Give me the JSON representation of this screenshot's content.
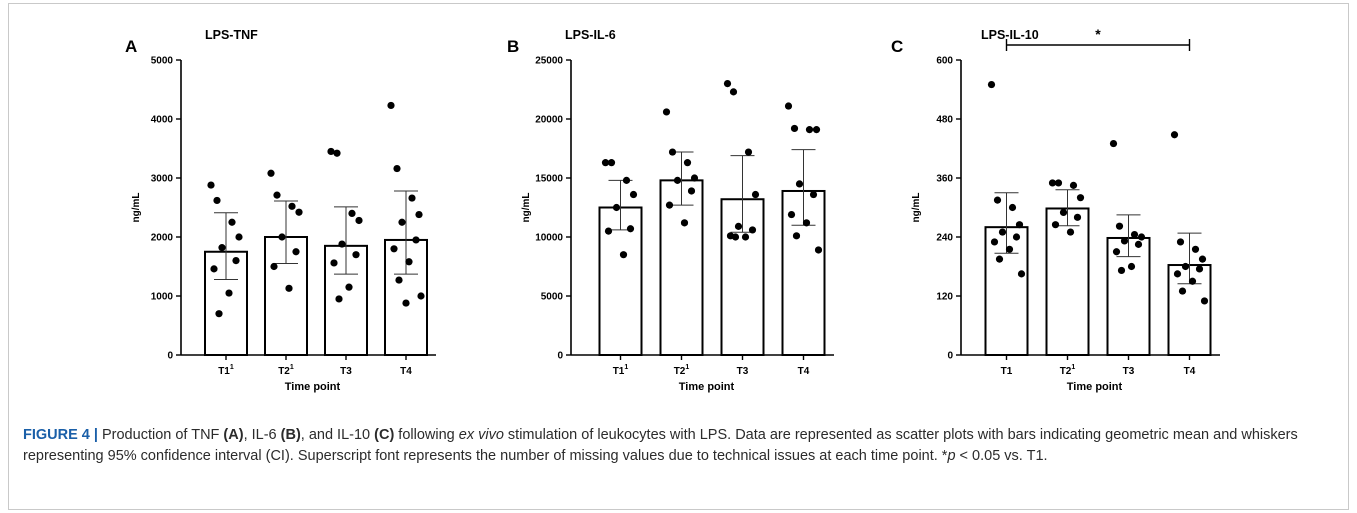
{
  "chart_data": [
    {
      "type": "bar",
      "panel": "A",
      "title": "LPS-TNF",
      "xlabel": "Time point",
      "ylabel": "ng/mL",
      "categories": [
        "T1",
        "T2",
        "T3",
        "T4"
      ],
      "category_superscripts": [
        "1",
        "1",
        "",
        ""
      ],
      "ylim": [
        0,
        5000
      ],
      "yticks": [
        "0",
        "1000",
        "2000",
        "3000",
        "4000",
        "5000"
      ],
      "bar_values": [
        1750,
        2000,
        1850,
        1950
      ],
      "ci_lower": [
        1280,
        1550,
        1370,
        1370
      ],
      "ci_upper": [
        2410,
        2610,
        2510,
        2780
      ],
      "points": [
        [
          2880,
          2620,
          2250,
          2000,
          1820,
          1600,
          1460,
          1050,
          700
        ],
        [
          3080,
          2710,
          2520,
          2420,
          2000,
          1750,
          1500,
          1130
        ],
        [
          3450,
          3420,
          2400,
          2280,
          1880,
          1700,
          1560,
          1150,
          950
        ],
        [
          4230,
          3160,
          2660,
          2380,
          2250,
          1950,
          1800,
          1580,
          1270,
          1000,
          880
        ]
      ],
      "significance": null
    },
    {
      "type": "bar",
      "panel": "B",
      "title": "LPS-IL-6",
      "xlabel": "Time point",
      "ylabel": "ng/mL",
      "categories": [
        "T1",
        "T2",
        "T3",
        "T4"
      ],
      "category_superscripts": [
        "1",
        "1",
        "",
        ""
      ],
      "ylim": [
        0,
        25000
      ],
      "yticks": [
        "0",
        "5000",
        "10000",
        "15000",
        "20000",
        "25000"
      ],
      "bar_values": [
        12500,
        14800,
        13200,
        13900
      ],
      "ci_lower": [
        10600,
        12700,
        10400,
        11000
      ],
      "ci_upper": [
        14800,
        17200,
        16900,
        17400
      ],
      "points": [
        [
          16300,
          16300,
          14800,
          13600,
          12500,
          10700,
          10500,
          8500
        ],
        [
          20600,
          17200,
          16300,
          15000,
          14800,
          13900,
          12700,
          11200
        ],
        [
          23000,
          22300,
          17200,
          13600,
          10900,
          10600,
          10100,
          10000,
          10000
        ],
        [
          21100,
          19200,
          19100,
          19100,
          14500,
          13600,
          11900,
          11200,
          10100,
          8900
        ]
      ],
      "significance": null
    },
    {
      "type": "bar",
      "panel": "C",
      "title": "LPS-IL-10",
      "xlabel": "Time point",
      "ylabel": "ng/mL",
      "categories": [
        "T1",
        "T2",
        "T3",
        "T4"
      ],
      "category_superscripts": [
        "",
        "1",
        "",
        ""
      ],
      "ylim": [
        0,
        600
      ],
      "yticks": [
        "0",
        "120",
        "240",
        "360",
        "480",
        "600"
      ],
      "bar_values": [
        260,
        298,
        238,
        183
      ],
      "ci_lower": [
        207,
        263,
        200,
        145
      ],
      "ci_upper": [
        330,
        336,
        285,
        248
      ],
      "points": [
        [
          550,
          315,
          300,
          265,
          250,
          240,
          230,
          215,
          195,
          165
        ],
        [
          350,
          350,
          345,
          320,
          290,
          280,
          265,
          250
        ],
        [
          430,
          262,
          245,
          240,
          232,
          225,
          210,
          180,
          172
        ],
        [
          448,
          230,
          215,
          195,
          180,
          175,
          165,
          150,
          130,
          110
        ]
      ],
      "significance": {
        "from": 0,
        "to": 3,
        "label": "*"
      }
    }
  ],
  "caption": {
    "figure_label": "FIGURE 4 |",
    "text_1": " Production of TNF ",
    "ref_a": "(A)",
    "text_2": ", IL-6 ",
    "ref_b": "(B)",
    "text_3": ", and IL-10 ",
    "ref_c": "(C)",
    "text_4": " following ",
    "italic_1": "ex vivo",
    "text_5": " stimulation of leukocytes with LPS. Data are represented as scatter plots with bars indicating geometric mean and whiskers representing 95% confidence interval (CI). Superscript font represents the number of missing values due to technical issues at each time point. *",
    "italic_p": "p",
    "text_6": " < 0.05 vs. T1."
  }
}
